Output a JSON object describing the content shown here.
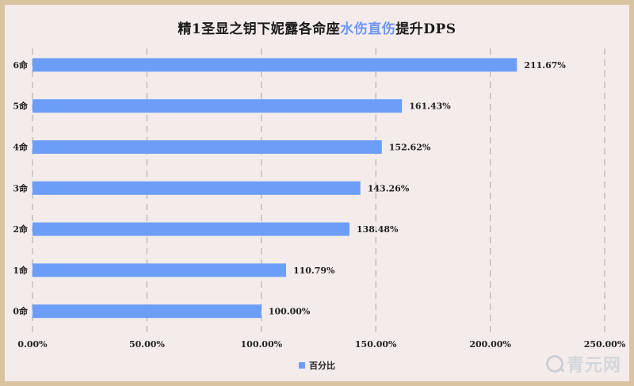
{
  "chart_data": {
    "type": "bar",
    "orientation": "horizontal",
    "title_parts": [
      "精1圣显之钥下妮露各命座",
      "水伤直伤",
      "提升DPS"
    ],
    "categories": [
      "6命",
      "5命",
      "4命",
      "3命",
      "2命",
      "1命",
      "0命"
    ],
    "series": [
      {
        "name": "百分比",
        "values": [
          211.67,
          161.43,
          152.62,
          143.26,
          138.48,
          110.79,
          100.0
        ]
      }
    ],
    "data_labels": [
      "211.67%",
      "161.43%",
      "152.62%",
      "143.26%",
      "138.48%",
      "110.79%",
      "100.00%"
    ],
    "xticks": [
      "0.00%",
      "50.00%",
      "100.00%",
      "150.00%",
      "200.00%",
      "250.00%"
    ],
    "xlim": [
      0,
      250
    ],
    "grid": "vertical dashed",
    "legend_position": "bottom",
    "colors": {
      "bar": "#6d9ef7",
      "highlight": "#6d96f2",
      "frame": "#d9c3a0",
      "background": "#f3ecea"
    }
  },
  "watermark": {
    "text": "青元网",
    "icon": "q-logo-icon"
  }
}
